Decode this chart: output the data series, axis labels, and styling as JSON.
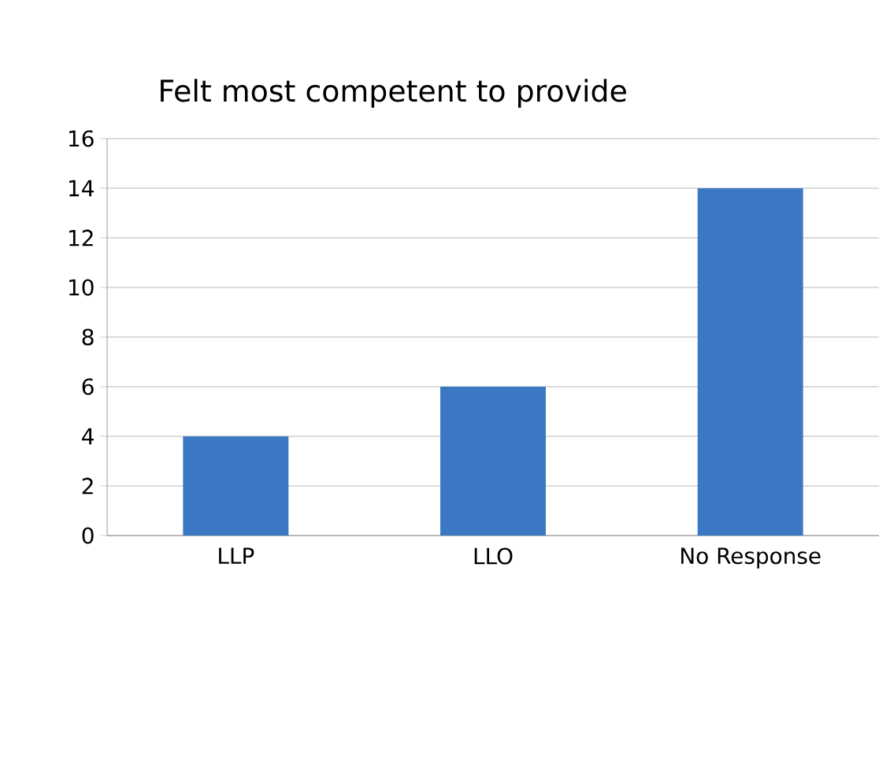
{
  "chart_data": {
    "type": "bar",
    "title": "Felt most competent to provide",
    "categories": [
      "LLP",
      "LLO",
      "No Response"
    ],
    "values": [
      4,
      6,
      14
    ],
    "color": "#3b78c4",
    "ylim": [
      0,
      16
    ],
    "yticks": [
      0,
      2,
      4,
      6,
      8,
      10,
      12,
      14,
      16
    ],
    "grid": "y"
  }
}
